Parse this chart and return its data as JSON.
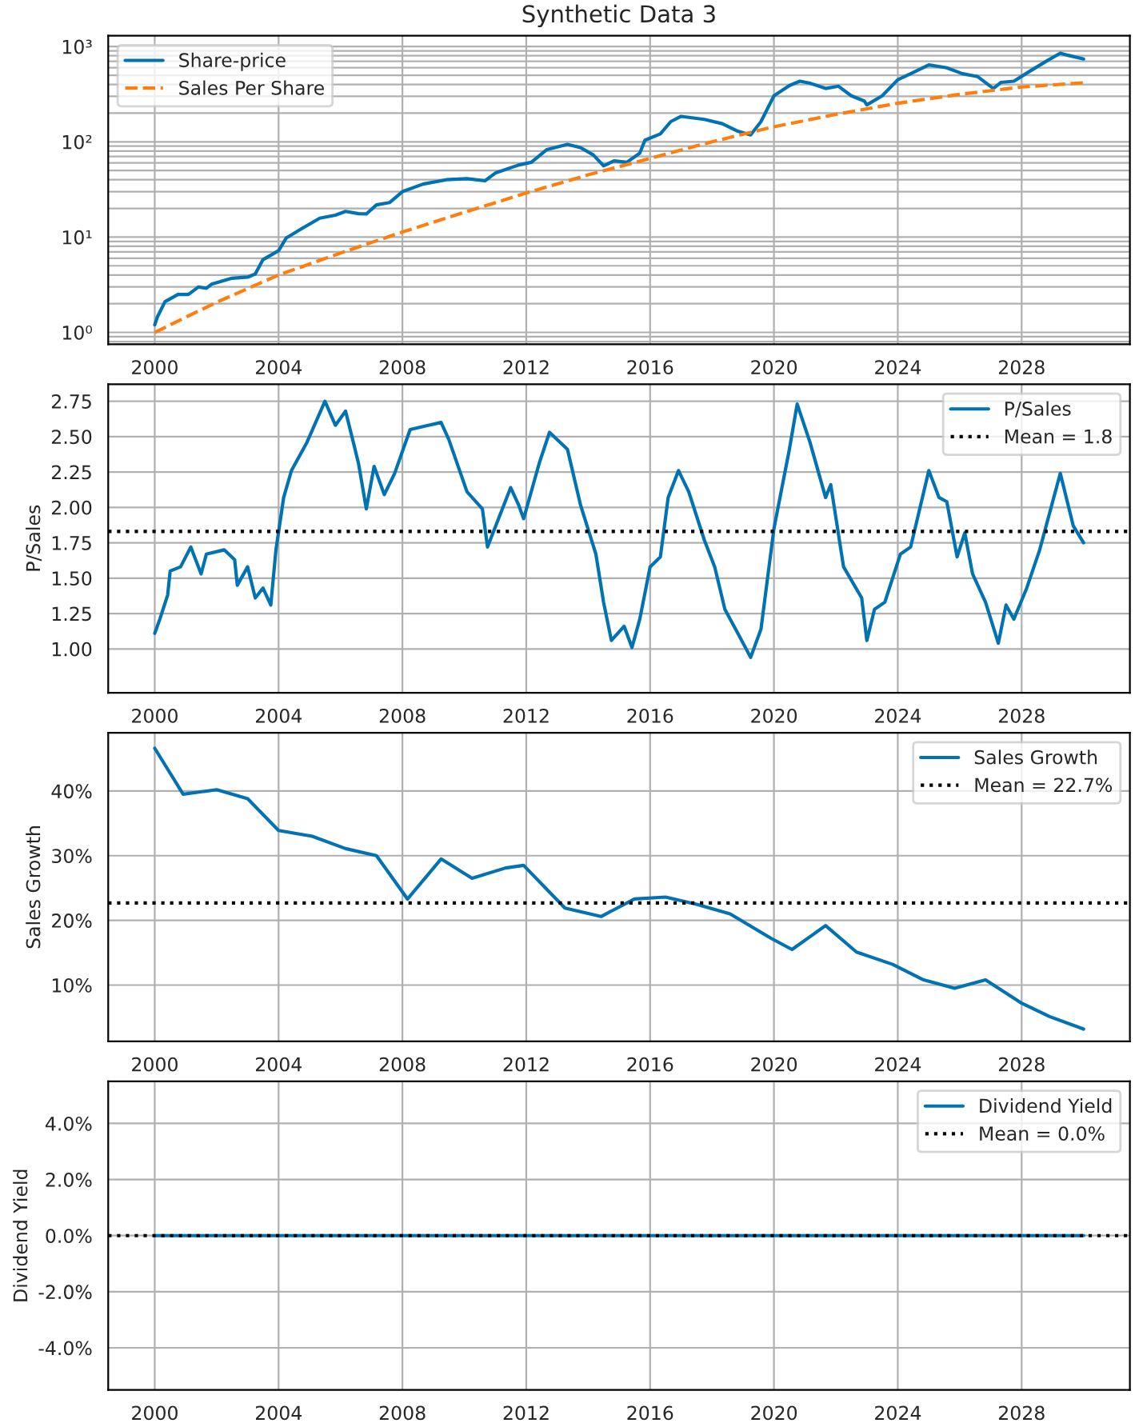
{
  "chart_data": [
    {
      "type": "line",
      "title": "Synthetic Data 3",
      "log": "y",
      "grid": true,
      "legend": "top left",
      "xlim": [
        "1998-07",
        "2031-07"
      ],
      "xticks": [
        {
          "value": "2000",
          "label": "2000"
        },
        {
          "value": "2004",
          "label": "2004"
        },
        {
          "value": "2008",
          "label": "2008"
        },
        {
          "value": "2012",
          "label": "2012"
        },
        {
          "value": "2016",
          "label": "2016"
        },
        {
          "value": "2020",
          "label": "2020"
        },
        {
          "value": "2024",
          "label": "2024"
        },
        {
          "value": "2028",
          "label": "2028"
        }
      ],
      "ylim": [
        0.75,
        1300
      ],
      "yticks": [
        {
          "value": 1,
          "label": "10⁰"
        },
        {
          "value": 10,
          "label": "10¹"
        },
        {
          "value": 100,
          "label": "10²"
        },
        {
          "value": 1000,
          "label": "10³"
        }
      ],
      "series": [
        {
          "name": "Share-price",
          "color": "#0173b2",
          "line_style": "solid",
          "x": [
            "2000-01",
            "2000-02",
            "2000-05",
            "2000-10",
            "2001-02",
            "2001-06",
            "2001-09",
            "2001-11",
            "2002-07",
            "2003-01",
            "2003-04",
            "2003-07",
            "2004-01",
            "2004-04",
            "2004-10",
            "2005-05",
            "2005-11",
            "2006-03",
            "2006-08",
            "2006-11",
            "2007-03",
            "2007-08",
            "2008-01",
            "2008-09",
            "2009-06",
            "2010-02",
            "2010-09",
            "2011-01",
            "2011-10",
            "2012-03",
            "2012-09",
            "2013-05",
            "2013-10",
            "2014-03",
            "2014-07",
            "2014-11",
            "2015-04",
            "2015-09",
            "2015-11",
            "2016-05",
            "2016-09",
            "2017-01",
            "2017-10",
            "2018-05",
            "2018-11",
            "2019-04",
            "2019-08",
            "2020-01",
            "2020-07",
            "2020-11",
            "2021-03",
            "2021-09",
            "2022-02",
            "2022-07",
            "2022-12",
            "2023-01",
            "2023-07",
            "2024-01",
            "2024-06",
            "2025-01",
            "2025-08",
            "2026-02",
            "2026-08",
            "2027-02",
            "2027-05",
            "2027-10",
            "2028-04",
            "2028-11",
            "2029-04",
            "2029-07",
            "2030-01"
          ],
          "values": [
            1.2,
            1.45,
            2.1,
            2.5,
            2.5,
            3.0,
            2.9,
            3.2,
            3.7,
            3.8,
            4.1,
            5.8,
            7.2,
            9.8,
            12.3,
            15.8,
            17,
            18.6,
            17.6,
            17.5,
            21.8,
            23,
            30,
            36,
            40,
            41,
            39,
            47,
            57,
            61,
            83,
            94,
            87,
            73,
            56,
            63,
            61,
            76,
            104,
            121,
            163,
            185,
            172,
            155,
            129,
            118,
            163,
            304,
            389,
            433,
            412,
            363,
            383,
            304,
            268,
            244,
            304,
            449,
            519,
            641,
            598,
            519,
            483,
            363,
            420,
            433,
            547,
            714,
            852,
            809,
            740
          ]
        },
        {
          "name": "Sales Per Share",
          "color": "#ff7f0e",
          "line_style": "dashed",
          "x": [
            "2000-01",
            "2002-01",
            "2004-01",
            "2006-01",
            "2008-01",
            "2010-01",
            "2012-01",
            "2014-01",
            "2016-01",
            "2018-01",
            "2020-01",
            "2022-01",
            "2024-01",
            "2026-01",
            "2028-01",
            "2030-01"
          ],
          "values": [
            1.0,
            2.07,
            4.0,
            6.8,
            11.3,
            18.2,
            29,
            45,
            67,
            100,
            144,
            194,
            254,
            315,
            376,
            417
          ]
        }
      ]
    },
    {
      "type": "line",
      "ylabel": "P/Sales",
      "grid": true,
      "legend": "top right",
      "xlim": [
        "1998-07",
        "2031-07"
      ],
      "xticks": [
        {
          "value": "2000",
          "label": "2000"
        },
        {
          "value": "2004",
          "label": "2004"
        },
        {
          "value": "2008",
          "label": "2008"
        },
        {
          "value": "2012",
          "label": "2012"
        },
        {
          "value": "2016",
          "label": "2016"
        },
        {
          "value": "2020",
          "label": "2020"
        },
        {
          "value": "2024",
          "label": "2024"
        },
        {
          "value": "2028",
          "label": "2028"
        }
      ],
      "ylim": [
        0.69,
        2.87
      ],
      "yticks": [
        {
          "value": 1,
          "label": "1.00"
        },
        {
          "value": 1.25,
          "label": "1.25"
        },
        {
          "value": 1.5,
          "label": "1.50"
        },
        {
          "value": 1.75,
          "label": "1.75"
        },
        {
          "value": 2,
          "label": "2.00"
        },
        {
          "value": 2.25,
          "label": "2.25"
        },
        {
          "value": 2.5,
          "label": "2.50"
        },
        {
          "value": 2.75,
          "label": "2.75"
        }
      ],
      "ref_lines": [
        {
          "axis": "y",
          "value": 1.83,
          "label": "Mean = 1.8",
          "color": "#000000",
          "line_style": "dotted"
        }
      ],
      "series": [
        {
          "name": "P/Sales",
          "color": "#0173b2",
          "line_style": "solid",
          "x": [
            "2000-01",
            "2000-03",
            "2000-06",
            "2000-07",
            "2000-11",
            "2001-03",
            "2001-07",
            "2001-09",
            "2002-04",
            "2002-08",
            "2002-09",
            "2003-01",
            "2003-04",
            "2003-07",
            "2003-10",
            "2003-12",
            "2004-03",
            "2004-06",
            "2004-12",
            "2005-07",
            "2005-11",
            "2006-03",
            "2006-06",
            "2006-08",
            "2006-11",
            "2007-02",
            "2007-06",
            "2007-10",
            "2008-04",
            "2008-11",
            "2009-04",
            "2009-07",
            "2010-02",
            "2010-08",
            "2010-10",
            "2011-07",
            "2011-10",
            "2011-12",
            "2012-06",
            "2012-10",
            "2013-05",
            "2013-10",
            "2014-04",
            "2014-07",
            "2014-10",
            "2015-03",
            "2015-06",
            "2015-09",
            "2016-01",
            "2016-05",
            "2016-08",
            "2016-12",
            "2017-04",
            "2017-10",
            "2018-02",
            "2018-06",
            "2018-11",
            "2019-04",
            "2019-08",
            "2020-01",
            "2020-07",
            "2020-10",
            "2021-03",
            "2021-09",
            "2021-11",
            "2022-04",
            "2022-11",
            "2023-01",
            "2023-04",
            "2023-08",
            "2024-02",
            "2024-06",
            "2025-01",
            "2025-05",
            "2025-08",
            "2025-12",
            "2026-03",
            "2026-06",
            "2026-11",
            "2027-04",
            "2027-07",
            "2027-10",
            "2028-03",
            "2028-08",
            "2029-04",
            "2029-09",
            "2030-01"
          ],
          "values": [
            1.11,
            1.21,
            1.38,
            1.55,
            1.58,
            1.72,
            1.53,
            1.67,
            1.7,
            1.63,
            1.45,
            1.58,
            1.36,
            1.43,
            1.31,
            1.7,
            2.07,
            2.26,
            2.46,
            2.75,
            2.58,
            2.68,
            2.46,
            2.31,
            1.99,
            2.29,
            2.09,
            2.24,
            2.55,
            2.58,
            2.6,
            2.48,
            2.11,
            1.99,
            1.72,
            2.14,
            2.02,
            1.92,
            2.31,
            2.53,
            2.41,
            2.02,
            1.67,
            1.33,
            1.06,
            1.16,
            1.01,
            1.21,
            1.58,
            1.65,
            2.07,
            2.26,
            2.11,
            1.77,
            1.58,
            1.28,
            1.11,
            0.94,
            1.14,
            1.85,
            2.41,
            2.73,
            2.46,
            2.07,
            2.16,
            1.58,
            1.36,
            1.06,
            1.28,
            1.33,
            1.67,
            1.72,
            2.26,
            2.07,
            2.04,
            1.65,
            1.82,
            1.53,
            1.33,
            1.04,
            1.31,
            1.21,
            1.43,
            1.7,
            2.24,
            1.87,
            1.75
          ]
        }
      ]
    },
    {
      "type": "line",
      "ylabel": "Sales Growth",
      "grid": true,
      "legend": "top right",
      "xlim": [
        "1998-07",
        "2031-07"
      ],
      "xticks": [
        {
          "value": "2000",
          "label": "2000"
        },
        {
          "value": "2004",
          "label": "2004"
        },
        {
          "value": "2008",
          "label": "2008"
        },
        {
          "value": "2012",
          "label": "2012"
        },
        {
          "value": "2016",
          "label": "2016"
        },
        {
          "value": "2020",
          "label": "2020"
        },
        {
          "value": "2024",
          "label": "2024"
        },
        {
          "value": "2028",
          "label": "2028"
        }
      ],
      "ylim": [
        1.3,
        49
      ],
      "yticks": [
        {
          "value": 10,
          "label": "10%"
        },
        {
          "value": 20,
          "label": "20%"
        },
        {
          "value": 30,
          "label": "30%"
        },
        {
          "value": 40,
          "label": "40%"
        }
      ],
      "ref_lines": [
        {
          "axis": "y",
          "value": 22.7,
          "label": "Mean = 22.7%",
          "color": "#000000",
          "line_style": "dotted"
        }
      ],
      "series": [
        {
          "name": "Sales Growth",
          "color": "#0173b2",
          "line_style": "solid",
          "x": [
            "2000-01",
            "2000-12",
            "2002-01",
            "2003-01",
            "2004-01",
            "2005-02",
            "2006-03",
            "2007-03",
            "2008-03",
            "2009-04",
            "2010-04",
            "2011-05",
            "2011-12",
            "2013-04",
            "2014-06",
            "2015-07",
            "2016-07",
            "2017-07",
            "2018-08",
            "2019-12",
            "2020-08",
            "2021-09",
            "2022-09",
            "2023-11",
            "2024-11",
            "2025-11",
            "2026-11",
            "2028-01",
            "2028-12",
            "2030-01"
          ],
          "values": [
            46.6,
            39.5,
            40.2,
            38.8,
            33.9,
            33.0,
            31.1,
            30.0,
            23.3,
            29.5,
            26.5,
            28.1,
            28.5,
            21.9,
            20.6,
            23.3,
            23.6,
            22.5,
            21.0,
            17.2,
            15.5,
            19.2,
            15.1,
            13.2,
            10.8,
            9.5,
            10.8,
            7.2,
            5.1,
            3.2
          ]
        }
      ]
    },
    {
      "type": "line",
      "ylabel": "Dividend Yield",
      "grid": true,
      "legend": "top right",
      "xlim": [
        "1998-07",
        "2031-07"
      ],
      "xticks": [
        {
          "value": "2000",
          "label": "2000"
        },
        {
          "value": "2004",
          "label": "2004"
        },
        {
          "value": "2008",
          "label": "2008"
        },
        {
          "value": "2012",
          "label": "2012"
        },
        {
          "value": "2016",
          "label": "2016"
        },
        {
          "value": "2020",
          "label": "2020"
        },
        {
          "value": "2024",
          "label": "2024"
        },
        {
          "value": "2028",
          "label": "2028"
        }
      ],
      "ylim": [
        -5.5,
        5.5
      ],
      "yticks": [
        {
          "value": -4,
          "label": "-4.0%"
        },
        {
          "value": -2,
          "label": "-2.0%"
        },
        {
          "value": 0,
          "label": "0.0%"
        },
        {
          "value": 2,
          "label": "2.0%"
        },
        {
          "value": 4,
          "label": "4.0%"
        }
      ],
      "ref_lines": [
        {
          "axis": "y",
          "value": 0,
          "label": "Mean = 0.0%",
          "color": "#000000",
          "line_style": "dotted"
        }
      ],
      "series": [
        {
          "name": "Dividend Yield",
          "color": "#0173b2",
          "line_style": "solid",
          "x": [
            "2000-01",
            "2030-01"
          ],
          "values": [
            0,
            0
          ]
        }
      ]
    }
  ]
}
